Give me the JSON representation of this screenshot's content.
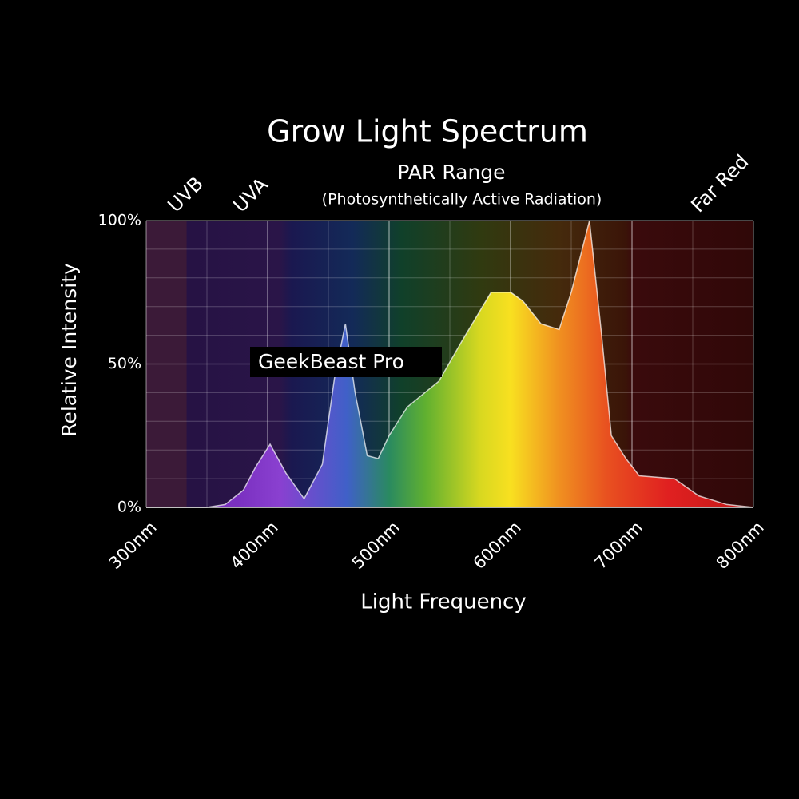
{
  "chart_data": {
    "type": "area",
    "title": "Grow Light Spectrum",
    "annotations": {
      "par": "PAR Range",
      "par_note": "(Photosynthetically Active Radiation)"
    },
    "regions": [
      "UVB",
      "UVA",
      "Far Red"
    ],
    "x_label": "Light Frequency",
    "y_label": "Relative Intensity",
    "x": [
      300,
      350,
      365,
      380,
      390,
      402,
      415,
      430,
      445,
      455,
      464,
      472,
      482,
      491,
      500,
      515,
      541,
      560,
      584,
      600,
      610,
      625,
      640,
      650,
      665,
      675,
      683,
      695,
      706,
      735,
      755,
      778,
      800
    ],
    "series": [
      {
        "name": "GeekBeast Pro",
        "color": "#ffffff",
        "values": [
          0,
          0,
          1,
          6,
          14,
          22,
          12,
          3,
          15,
          45,
          64,
          40,
          18,
          17,
          25,
          35,
          44,
          58,
          75,
          75,
          72,
          64,
          62,
          75,
          100,
          60,
          25,
          17,
          11,
          10,
          4,
          1,
          0
        ]
      }
    ],
    "xlim": [
      300,
      800
    ],
    "xticks": [
      {
        "value": 300,
        "label": "300nm"
      },
      {
        "value": 400,
        "label": "400nm"
      },
      {
        "value": 500,
        "label": "500nm"
      },
      {
        "value": 600,
        "label": "600nm"
      },
      {
        "value": 700,
        "label": "700nm"
      },
      {
        "value": 800,
        "label": "800nm"
      }
    ],
    "ylim": [
      0,
      100
    ],
    "yticks": [
      {
        "value": 0,
        "label": "0%"
      },
      {
        "value": 50,
        "label": "50%"
      },
      {
        "value": 100,
        "label": "100%"
      }
    ],
    "grid": true
  }
}
